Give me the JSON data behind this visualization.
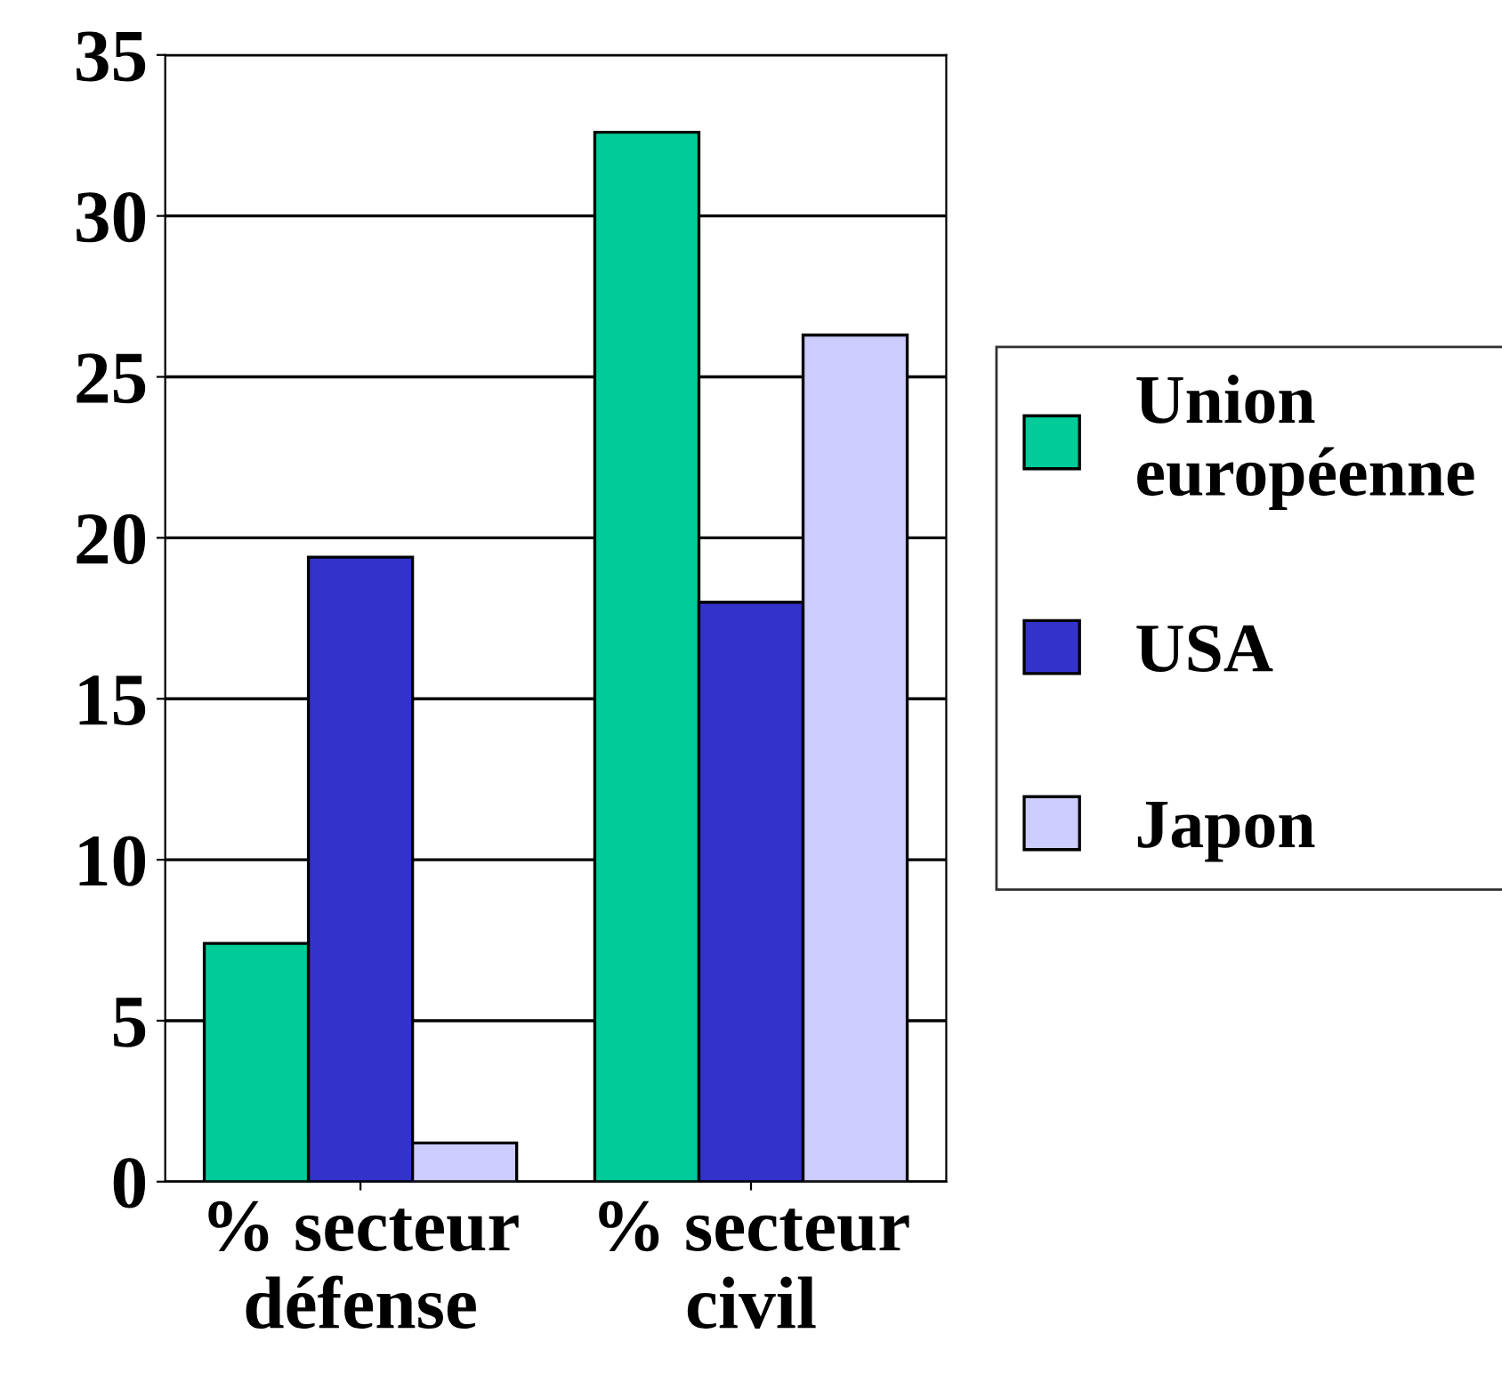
{
  "chart_data": {
    "type": "bar",
    "categories": [
      "% secteur\ndéfense",
      "% secteur\ncivil"
    ],
    "series": [
      {
        "name": "Union\neuropéenne",
        "color": "#00cc99",
        "values": [
          7.4,
          32.6
        ]
      },
      {
        "name": "USA",
        "color": "#3333cc",
        "values": [
          19.4,
          18
        ]
      },
      {
        "name": "Japon",
        "color": "#ccccff",
        "values": [
          1.2,
          26.3
        ]
      }
    ],
    "ylim": [
      0,
      35
    ],
    "yticks": [
      0,
      5,
      10,
      15,
      20,
      25,
      30,
      35
    ],
    "grid": "y",
    "legend": "right"
  }
}
